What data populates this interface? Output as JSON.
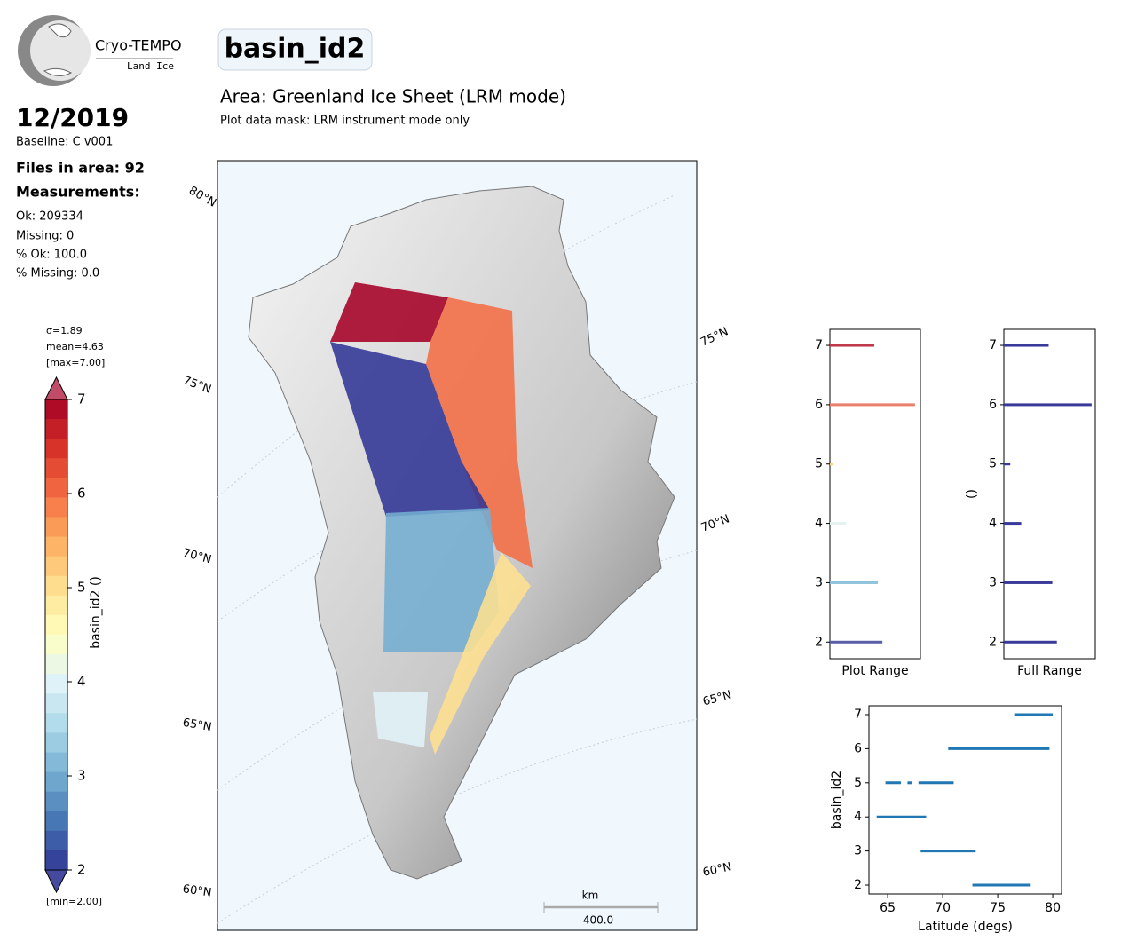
{
  "header": {
    "logo_name": "Cryo-TEMPO",
    "logo_sub": "Land Ice",
    "date": "12/2019",
    "baseline": "Baseline: C v001",
    "files": "Files in area: 92",
    "measurements": "Measurements:",
    "ok": "Ok: 209334",
    "missing": "Missing: 0",
    "pct_ok": "% Ok: 100.0",
    "pct_missing": "% Missing: 0.0",
    "title": "basin_id2",
    "area": "Area: Greenland Ice Sheet (LRM mode)",
    "mask": "Plot data mask: LRM instrument mode only"
  },
  "chart_data": [
    {
      "type": "colorbar",
      "label": "basin_id2 ()",
      "sigma": "σ=1.89",
      "mean": "mean=4.63",
      "max": "[max=7.00]",
      "min": "[min=2.00]",
      "ylim": [
        2,
        7
      ],
      "yticks": [
        2,
        3,
        4,
        5,
        6,
        7
      ],
      "colors": [
        "#313695",
        "#4575b4",
        "#74add1",
        "#abd9e9",
        "#e0f3f8",
        "#ffffbf",
        "#fee090",
        "#fdae61",
        "#f46d43",
        "#d73027",
        "#a50026"
      ]
    },
    {
      "type": "map",
      "lat_labels": [
        "80°N",
        "75°N",
        "70°N",
        "65°N",
        "60°N"
      ],
      "basin_values": [
        7,
        6,
        2,
        3,
        5,
        4
      ],
      "scale_unit": "km",
      "scale_length": "400.0"
    },
    {
      "type": "barh",
      "xlabel": "Plot Range",
      "y": [
        2,
        3,
        4,
        5,
        6,
        7
      ],
      "values": [
        58,
        53,
        18,
        4,
        94,
        49
      ],
      "colors": [
        "#5a5ea8",
        "#8fc3dc",
        "#e3f1f1",
        "#fdd08a",
        "#e8806c",
        "#c0394b"
      ],
      "xlim": [
        0,
        100
      ],
      "ylim": [
        1.72,
        7.27
      ],
      "yticks": [
        2,
        3,
        4,
        5,
        6,
        7
      ]
    },
    {
      "type": "barh",
      "xlabel": "Full Range",
      "ylabel": "()",
      "y": [
        2,
        3,
        4,
        5,
        6,
        7
      ],
      "values": [
        58,
        53,
        19,
        7,
        96,
        49
      ],
      "color": "#3a3a9a",
      "xlim": [
        0,
        100
      ],
      "ylim": [
        1.72,
        7.27
      ],
      "yticks": [
        2,
        3,
        4,
        5,
        6,
        7
      ]
    },
    {
      "type": "segments",
      "xlabel": "Latitude (degs)",
      "ylabel": "basin_id2",
      "color": "#1f77b4",
      "segments": [
        [
          76.5,
          80,
          7
        ],
        [
          70.5,
          79.7,
          6
        ],
        [
          64.8,
          66.2,
          5
        ],
        [
          66.8,
          67.2,
          5
        ],
        [
          67.8,
          71,
          5
        ],
        [
          64,
          68.5,
          4
        ],
        [
          68,
          73,
          3
        ],
        [
          72.7,
          78,
          2
        ]
      ],
      "xlim": [
        63.3,
        80.8
      ],
      "xticks": [
        65,
        70,
        75,
        80
      ],
      "ylim": [
        1.74,
        7.26
      ],
      "yticks": [
        2,
        3,
        4,
        5,
        6,
        7
      ]
    }
  ]
}
